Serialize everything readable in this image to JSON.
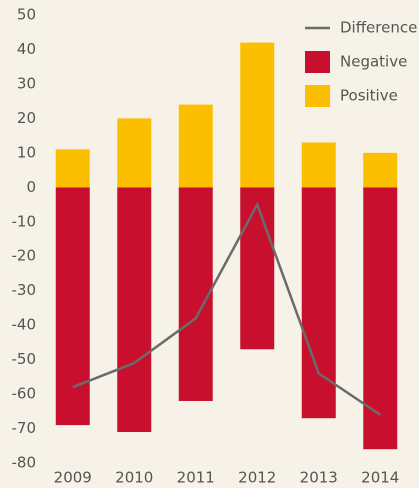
{
  "chart_data": {
    "type": "bar",
    "categories": [
      "2009",
      "2010",
      "2011",
      "2012",
      "2013",
      "2014"
    ],
    "series": [
      {
        "name": "Difference",
        "type": "line",
        "color": "#6b6b6b",
        "values": [
          -58,
          -51,
          -38,
          -5,
          -54,
          -66
        ]
      },
      {
        "name": "Negative",
        "color": "#c8102e",
        "values": [
          -69,
          -71,
          -62,
          -47,
          -67,
          -76
        ]
      },
      {
        "name": "Positive",
        "color": "#fbbf00",
        "values": [
          11,
          20,
          24,
          42,
          13,
          10
        ]
      }
    ],
    "ylim": [
      -80,
      50
    ],
    "yticks": [
      -80,
      -70,
      -60,
      -50,
      -40,
      -30,
      -20,
      -10,
      0,
      10,
      20,
      30,
      40,
      50
    ],
    "grid": false,
    "legend": "top-right"
  }
}
